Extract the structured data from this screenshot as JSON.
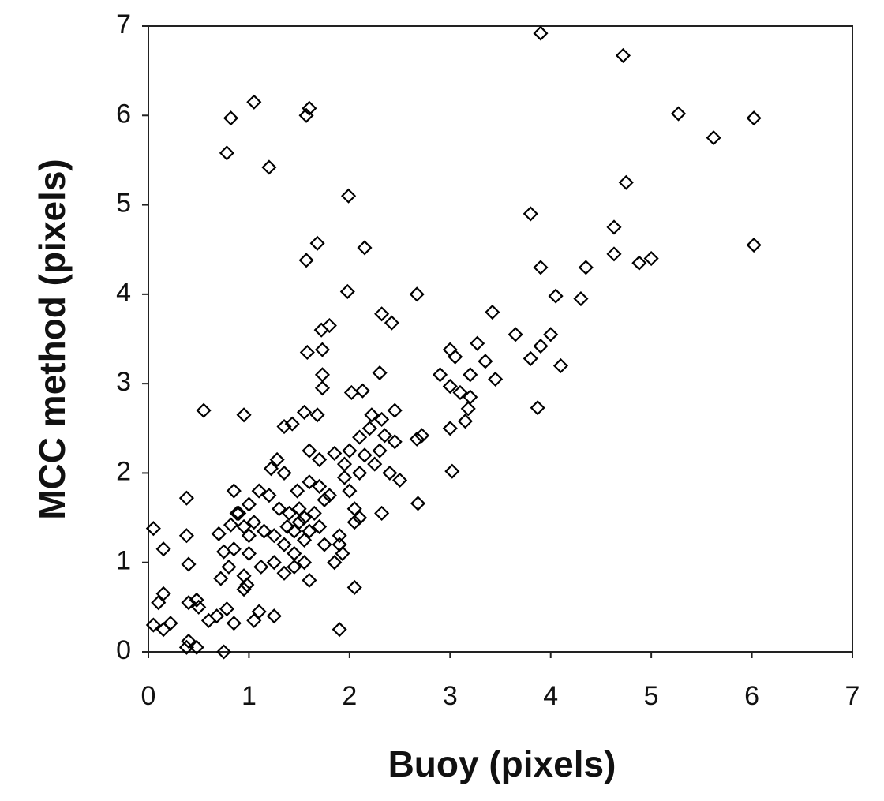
{
  "chart_data": {
    "type": "scatter",
    "x_label": "Buoy (pixels)",
    "y_label": "MCC method (pixels)",
    "xlim": [
      0,
      7
    ],
    "ylim": [
      0,
      7
    ],
    "xticks": [
      0,
      1,
      2,
      3,
      4,
      5,
      6,
      7
    ],
    "yticks": [
      0,
      1,
      2,
      3,
      4,
      5,
      6,
      7
    ],
    "color": "#000000",
    "x": [
      3.9,
      4.72,
      1.05,
      1.6,
      1.57,
      0.82,
      5.27,
      6.02,
      5.62,
      0.78,
      1.2,
      4.75,
      1.99,
      3.8,
      4.63,
      1.68,
      1.57,
      2.15,
      6.02,
      4.63,
      4.88,
      5.0,
      3.9,
      4.35,
      1.98,
      2.67,
      4.05,
      4.3,
      2.32,
      2.42,
      1.8,
      1.72,
      3.42,
      3.65,
      4.0,
      3.9,
      3.8,
      4.1,
      1.58,
      1.73,
      1.73,
      1.73,
      2.02,
      2.13,
      2.3,
      0.55,
      0.95,
      1.55,
      1.68,
      3.87,
      3.27,
      3.0,
      3.05,
      3.2,
      3.35,
      3.45,
      2.9,
      3.0,
      3.1,
      3.2,
      3.18,
      3.15,
      3.0,
      2.72,
      2.67,
      3.02,
      2.68,
      2.32,
      2.05,
      1.9,
      2.22,
      2.32,
      2.45,
      2.2,
      2.35,
      2.1,
      2.0,
      2.15,
      2.3,
      2.45,
      2.25,
      2.4,
      2.5,
      2.1,
      1.95,
      1.85,
      1.6,
      1.7,
      1.35,
      1.43,
      1.28,
      1.22,
      1.35,
      1.48,
      1.6,
      1.7,
      1.8,
      1.95,
      2.0,
      2.05,
      2.1,
      2.05,
      1.9,
      1.9,
      1.85,
      1.93,
      1.75,
      1.6,
      1.5,
      1.4,
      1.3,
      1.2,
      1.1,
      1.0,
      0.85,
      0.9,
      0.95,
      1.0,
      1.05,
      1.15,
      1.25,
      1.35,
      1.45,
      1.55,
      1.6,
      1.35,
      1.25,
      1.12,
      1.0,
      0.85,
      0.75,
      0.8,
      0.95,
      0.98,
      0.95,
      0.72,
      0.7,
      0.82,
      1.5,
      1.55,
      1.65,
      1.75,
      1.45,
      1.38,
      1.55,
      1.7,
      0.05,
      0.15,
      0.38,
      0.38,
      0.4,
      0.15,
      0.1,
      0.05,
      0.15,
      0.22,
      0.4,
      0.5,
      0.48,
      0.6,
      0.68,
      0.78,
      0.85,
      0.4,
      0.38,
      0.48,
      0.75,
      1.05,
      1.1,
      1.25,
      0.88,
      1.45
    ],
    "values": [
      6.92,
      6.67,
      6.15,
      6.08,
      6.0,
      5.97,
      6.02,
      5.97,
      5.75,
      5.58,
      5.42,
      5.25,
      5.1,
      4.9,
      4.75,
      4.57,
      4.38,
      4.52,
      4.55,
      4.45,
      4.35,
      4.4,
      4.3,
      4.3,
      4.03,
      4.0,
      3.98,
      3.95,
      3.78,
      3.68,
      3.65,
      3.6,
      3.8,
      3.55,
      3.55,
      3.42,
      3.28,
      3.2,
      3.35,
      3.38,
      3.1,
      2.95,
      2.9,
      2.92,
      3.12,
      2.7,
      2.65,
      2.68,
      2.65,
      2.73,
      3.45,
      3.38,
      3.3,
      3.1,
      3.25,
      3.05,
      3.1,
      2.97,
      2.9,
      2.85,
      2.72,
      2.58,
      2.5,
      2.42,
      2.38,
      2.02,
      1.66,
      1.55,
      0.72,
      0.25,
      2.65,
      2.6,
      2.7,
      2.5,
      2.42,
      2.4,
      2.25,
      2.2,
      2.25,
      2.35,
      2.1,
      2.0,
      1.92,
      2.0,
      2.1,
      2.22,
      2.25,
      2.15,
      2.52,
      2.55,
      2.15,
      2.05,
      2.0,
      1.8,
      1.9,
      1.85,
      1.75,
      1.95,
      1.8,
      1.6,
      1.5,
      1.45,
      1.3,
      1.2,
      1.0,
      1.1,
      1.2,
      1.35,
      1.45,
      1.55,
      1.6,
      1.75,
      1.8,
      1.65,
      1.8,
      1.55,
      1.4,
      1.3,
      1.45,
      1.35,
      1.3,
      1.2,
      1.1,
      1.0,
      0.8,
      0.88,
      1.0,
      0.95,
      1.1,
      1.15,
      1.12,
      0.95,
      0.85,
      0.75,
      0.7,
      0.82,
      1.32,
      1.42,
      1.6,
      1.5,
      1.55,
      1.7,
      1.35,
      1.4,
      1.25,
      1.4,
      1.38,
      1.15,
      1.72,
      1.3,
      0.98,
      0.65,
      0.55,
      0.3,
      0.25,
      0.32,
      0.55,
      0.5,
      0.58,
      0.35,
      0.4,
      0.48,
      0.32,
      0.12,
      0.05,
      0.05,
      0.0,
      0.35,
      0.45,
      0.4,
      1.55,
      0.95
    ]
  }
}
